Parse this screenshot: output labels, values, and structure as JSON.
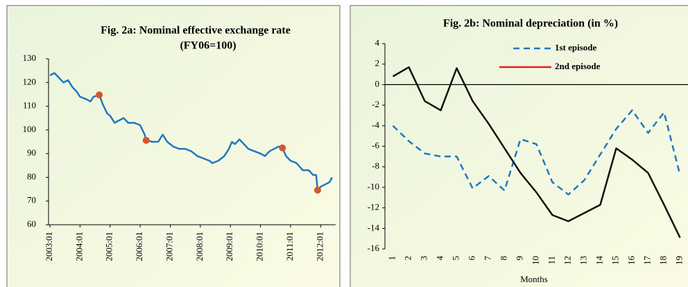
{
  "chart_data": [
    {
      "type": "line",
      "title": "Fig. 2a: Nominal effective exchange rate",
      "subtitle": "(FY06=100)",
      "x": [
        2003.0,
        2003.15,
        2003.3,
        2003.45,
        2003.6,
        2003.75,
        2003.9,
        2004.0,
        2004.2,
        2004.35,
        2004.45,
        2004.64,
        2004.75,
        2004.9,
        2005.0,
        2005.15,
        2005.3,
        2005.45,
        2005.6,
        2005.8,
        2006.0,
        2006.15,
        2006.2,
        2006.4,
        2006.6,
        2006.75,
        2006.9,
        2007.1,
        2007.3,
        2007.5,
        2007.7,
        2007.9,
        2008.1,
        2008.3,
        2008.4,
        2008.6,
        2008.8,
        2008.95,
        2009.05,
        2009.15,
        2009.3,
        2009.45,
        2009.6,
        2009.8,
        2010.0,
        2010.15,
        2010.3,
        2010.45,
        2010.6,
        2010.73,
        2010.85,
        2011.0,
        2011.2,
        2011.4,
        2011.6,
        2011.75,
        2011.85,
        2011.9,
        2012.0,
        2012.15,
        2012.3,
        2012.38
      ],
      "series": [
        {
          "color": "#1f77c4",
          "values": [
            123,
            124,
            122,
            120,
            121,
            118,
            116,
            114,
            113,
            112,
            114,
            114.8,
            111,
            107,
            106,
            103,
            104,
            105,
            103,
            103,
            102,
            98,
            95.6,
            95,
            95,
            98,
            95,
            93,
            92,
            92,
            91,
            89,
            88,
            87,
            86,
            87,
            89,
            92,
            95,
            94,
            96,
            94,
            92,
            91,
            90,
            89,
            91,
            92,
            93,
            92.4,
            89,
            87,
            86,
            83,
            83,
            81,
            81,
            74.6,
            76,
            77,
            78,
            80
          ]
        }
      ],
      "points": {
        "color": "#d9542b",
        "x": [
          2004.64,
          2006.2,
          2010.73,
          2011.9
        ],
        "values": [
          114.8,
          95.6,
          92.4,
          74.6
        ]
      },
      "xlim": [
        2003,
        2012.5
      ],
      "xticks": [
        {
          "value": 2003,
          "label": "2003:01"
        },
        {
          "value": 2004,
          "label": "2004:01"
        },
        {
          "value": 2005,
          "label": "2005:01"
        },
        {
          "value": 2006,
          "label": "2006:01"
        },
        {
          "value": 2007,
          "label": "2007:01"
        },
        {
          "value": 2008,
          "label": "2008:01"
        },
        {
          "value": 2009,
          "label": "2009:01"
        },
        {
          "value": 2010,
          "label": "2010:01"
        },
        {
          "value": 2011,
          "label": "2011:01"
        },
        {
          "value": 2012,
          "label": "2012:01"
        }
      ],
      "ylim": [
        60,
        130
      ],
      "yticks": [
        60,
        70,
        80,
        90,
        100,
        110,
        120,
        130
      ]
    },
    {
      "type": "line",
      "title": "Fig. 2b: Nominal depreciation (in %)",
      "x_label": "Months",
      "categories": [
        "1",
        "2",
        "3",
        "4",
        "5",
        "6",
        "7",
        "8",
        "9",
        "10",
        "11",
        "12",
        "13",
        "14",
        "15",
        "16",
        "17",
        "18",
        "19"
      ],
      "series": [
        {
          "name": "1st episode",
          "color": "#1f77c4",
          "dashed": true,
          "values": [
            -4,
            -5.5,
            -6.7,
            -7,
            -7,
            -10.1,
            -8.9,
            -10.3,
            -5.3,
            -5.8,
            -9.5,
            -10.7,
            -9.3,
            -6.8,
            -4.3,
            -2.5,
            -4.7,
            -2.7,
            -8.8
          ]
        },
        {
          "name": "2nd episode",
          "color": "#111111",
          "legend_color": "#e02020",
          "dashed": false,
          "values": [
            0.8,
            1.7,
            -1.6,
            -2.5,
            1.6,
            -1.6,
            -3.8,
            -6.2,
            -8.6,
            -10.5,
            -12.7,
            -13.3,
            -12.5,
            -11.7,
            -6.2,
            -7.3,
            -8.6,
            -11.7,
            -14.9
          ]
        }
      ],
      "ylim": [
        -16,
        4
      ],
      "yticks": [
        -16,
        -14,
        -12,
        -10,
        -8,
        -6,
        -4,
        -2,
        0,
        2,
        4
      ]
    }
  ]
}
